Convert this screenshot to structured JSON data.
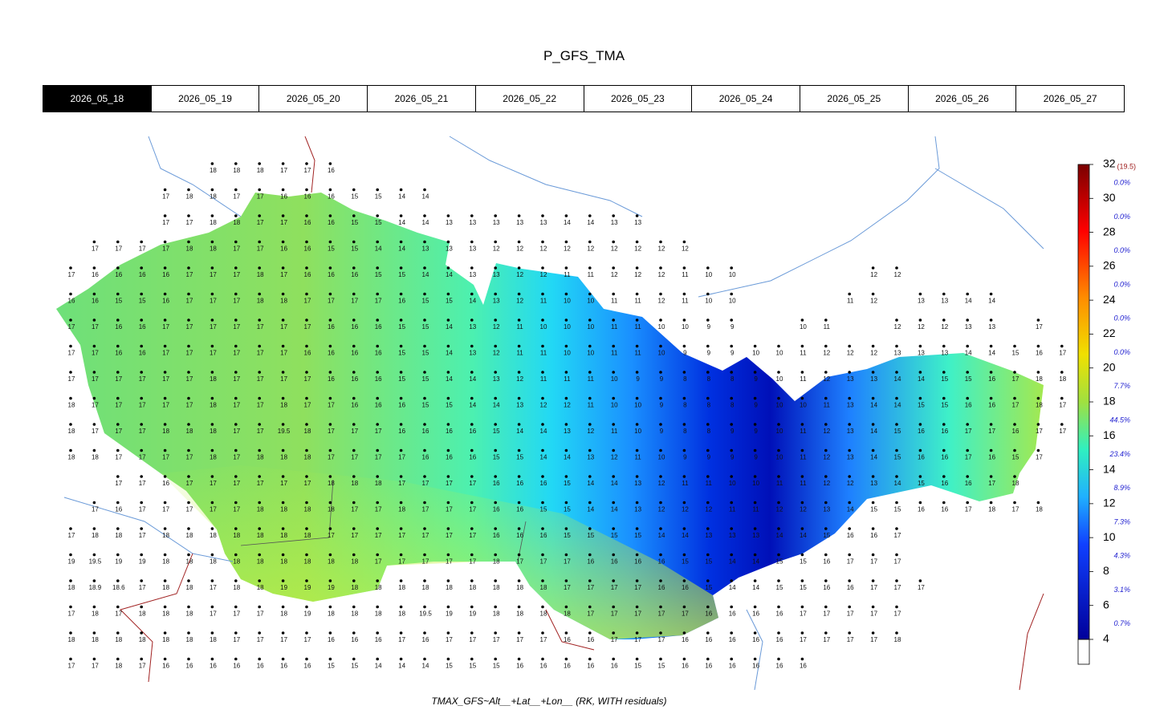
{
  "title": "P_GFS_TMA",
  "tabs": [
    "2026_05_18",
    "2026_05_19",
    "2026_05_20",
    "2026_05_21",
    "2026_05_22",
    "2026_05_23",
    "2026_05_24",
    "2026_05_25",
    "2026_05_26",
    "2026_05_27"
  ],
  "active_tab": 0,
  "footer": "TMAX_GFS~Alt__+Lat__+Lon__ (RK, WITH residuals)",
  "colorbar": {
    "range": [
      4,
      32
    ],
    "ticks": [
      32,
      30,
      28,
      26,
      24,
      22,
      20,
      18,
      16,
      14,
      12,
      10,
      8,
      6,
      4
    ],
    "max_label": "(19.5)",
    "class_shares": [
      {
        "value": 0,
        "label": "0.0%"
      },
      {
        "value": 0,
        "label": "0.0%"
      },
      {
        "value": 0,
        "label": "0.0%"
      },
      {
        "value": 0,
        "label": "0.0%"
      },
      {
        "value": 0,
        "label": "0.0%"
      },
      {
        "value": 0,
        "label": "0.0%"
      },
      {
        "value": 7.7,
        "label": "7.7%"
      },
      {
        "value": 44.5,
        "label": "44.5%"
      },
      {
        "value": 23.4,
        "label": "23.4%"
      },
      {
        "value": 8.9,
        "label": "8.9%"
      },
      {
        "value": 7.3,
        "label": "7.3%"
      },
      {
        "value": 4.3,
        "label": "4.3%"
      },
      {
        "value": 3.1,
        "label": "3.1%"
      },
      {
        "value": 0.7,
        "label": "0.7%"
      }
    ]
  },
  "stations": {
    "rows": [
      [
        null,
        null,
        null,
        null,
        null,
        null,
        18,
        18,
        18,
        17,
        17,
        16
      ],
      [
        null,
        null,
        null,
        null,
        17,
        18,
        18,
        17,
        17,
        16,
        16,
        16,
        15,
        15,
        14,
        14
      ],
      [
        null,
        null,
        null,
        null,
        17,
        17,
        18,
        18,
        17,
        17,
        16,
        16,
        15,
        15,
        14,
        14,
        13,
        13,
        13,
        13,
        13,
        14,
        14,
        13,
        13
      ],
      [
        null,
        17,
        17,
        17,
        17,
        18,
        18,
        17,
        17,
        16,
        16,
        15,
        15,
        14,
        14,
        13,
        13,
        13,
        12,
        12,
        12,
        12,
        12,
        12,
        12,
        12,
        12
      ],
      [
        17,
        16,
        16,
        16,
        16,
        17,
        17,
        17,
        18,
        17,
        16,
        16,
        16,
        15,
        15,
        14,
        14,
        13,
        13,
        12,
        12,
        11,
        11,
        12,
        12,
        12,
        11,
        10,
        10,
        null,
        null,
        null,
        null,
        null,
        12,
        12
      ],
      [
        16,
        16,
        15,
        15,
        16,
        17,
        17,
        17,
        18,
        18,
        17,
        17,
        17,
        17,
        16,
        15,
        15,
        14,
        13,
        12,
        11,
        10,
        10,
        11,
        11,
        12,
        11,
        10,
        10,
        null,
        null,
        null,
        null,
        11,
        12,
        null,
        13,
        13,
        14,
        14
      ],
      [
        17,
        17,
        16,
        16,
        17,
        17,
        17,
        17,
        17,
        17,
        17,
        16,
        16,
        16,
        15,
        15,
        14,
        13,
        12,
        11,
        10,
        10,
        10,
        11,
        11,
        10,
        10,
        9,
        9,
        null,
        null,
        10,
        11,
        null,
        null,
        12,
        12,
        12,
        13,
        13,
        null,
        17
      ],
      [
        17,
        17,
        16,
        16,
        17,
        17,
        17,
        17,
        17,
        17,
        16,
        16,
        16,
        16,
        15,
        15,
        14,
        13,
        12,
        11,
        11,
        10,
        10,
        11,
        11,
        10,
        9,
        9,
        9,
        10,
        10,
        11,
        12,
        12,
        12,
        13,
        13,
        13,
        14,
        14,
        15,
        16,
        17
      ],
      [
        17,
        17,
        17,
        17,
        17,
        17,
        18,
        17,
        17,
        17,
        17,
        16,
        16,
        16,
        15,
        15,
        14,
        14,
        13,
        12,
        11,
        11,
        11,
        10,
        9,
        9,
        8,
        8,
        8,
        9,
        10,
        11,
        12,
        13,
        13,
        14,
        14,
        15,
        15,
        16,
        17,
        18,
        18
      ],
      [
        18,
        17,
        17,
        17,
        17,
        17,
        18,
        17,
        17,
        18,
        17,
        17,
        16,
        16,
        16,
        15,
        15,
        14,
        14,
        13,
        12,
        12,
        11,
        10,
        10,
        9,
        8,
        8,
        8,
        9,
        10,
        10,
        11,
        13,
        14,
        14,
        15,
        15,
        16,
        16,
        17,
        18,
        17
      ],
      [
        18,
        17,
        17,
        17,
        18,
        18,
        18,
        17,
        17,
        19.5,
        18,
        17,
        17,
        17,
        16,
        16,
        16,
        16,
        15,
        14,
        14,
        13,
        12,
        11,
        10,
        9,
        8,
        8,
        9,
        9,
        10,
        11,
        12,
        13,
        14,
        15,
        16,
        16,
        17,
        17,
        16,
        17,
        17
      ],
      [
        18,
        18,
        17,
        17,
        17,
        17,
        18,
        17,
        18,
        18,
        18,
        17,
        17,
        17,
        17,
        16,
        16,
        16,
        15,
        15,
        14,
        14,
        13,
        12,
        11,
        10,
        9,
        9,
        9,
        9,
        10,
        11,
        12,
        13,
        14,
        15,
        16,
        16,
        17,
        16,
        15,
        17
      ],
      [
        null,
        null,
        17,
        17,
        16,
        17,
        17,
        17,
        17,
        17,
        17,
        18,
        18,
        18,
        17,
        17,
        17,
        17,
        16,
        16,
        16,
        15,
        14,
        14,
        13,
        12,
        11,
        11,
        10,
        10,
        11,
        11,
        12,
        12,
        13,
        14,
        15,
        16,
        16,
        17,
        18
      ],
      [
        null,
        17,
        16,
        17,
        17,
        17,
        17,
        17,
        18,
        18,
        18,
        18,
        17,
        17,
        18,
        17,
        17,
        17,
        16,
        16,
        15,
        15,
        14,
        14,
        13,
        12,
        12,
        12,
        11,
        11,
        12,
        12,
        13,
        14,
        15,
        15,
        16,
        16,
        17,
        18,
        17,
        18
      ],
      [
        17,
        18,
        18,
        17,
        18,
        18,
        18,
        18,
        18,
        18,
        18,
        17,
        17,
        17,
        17,
        17,
        17,
        17,
        16,
        16,
        16,
        15,
        15,
        15,
        15,
        14,
        14,
        13,
        13,
        13,
        14,
        14,
        15,
        16,
        16,
        17
      ],
      [
        19,
        19.5,
        19,
        19,
        18,
        18,
        18,
        18,
        18,
        18,
        18,
        18,
        18,
        17,
        17,
        17,
        17,
        17,
        18,
        17,
        17,
        17,
        16,
        16,
        16,
        16,
        15,
        15,
        14,
        14,
        15,
        15,
        16,
        17,
        17,
        17
      ],
      [
        18,
        18.9,
        18.6,
        17,
        18,
        18,
        17,
        18,
        18,
        19,
        19,
        19,
        18,
        18,
        18,
        18,
        18,
        18,
        18,
        18,
        18,
        17,
        17,
        17,
        17,
        16,
        16,
        15,
        14,
        14,
        15,
        15,
        16,
        16,
        17,
        17,
        17
      ],
      [
        17,
        18,
        17,
        18,
        18,
        18,
        17,
        17,
        17,
        18,
        19,
        18,
        18,
        18,
        18,
        19.5,
        19,
        19,
        18,
        18,
        18,
        18,
        17,
        17,
        17,
        17,
        17,
        16,
        16,
        16,
        16,
        17,
        17,
        17,
        17,
        17
      ],
      [
        18,
        18,
        18,
        18,
        18,
        18,
        18,
        17,
        17,
        17,
        17,
        16,
        16,
        16,
        17,
        16,
        17,
        17,
        17,
        17,
        17,
        16,
        16,
        17,
        17,
        17,
        16,
        16,
        16,
        16,
        16,
        17,
        17,
        17,
        17,
        18
      ],
      [
        17,
        17,
        18,
        17,
        16,
        16,
        16,
        16,
        16,
        16,
        16,
        15,
        15,
        14,
        14,
        14,
        15,
        15,
        15,
        16,
        16,
        16,
        16,
        16,
        15,
        15,
        16,
        16,
        16,
        16,
        16,
        16
      ]
    ]
  }
}
